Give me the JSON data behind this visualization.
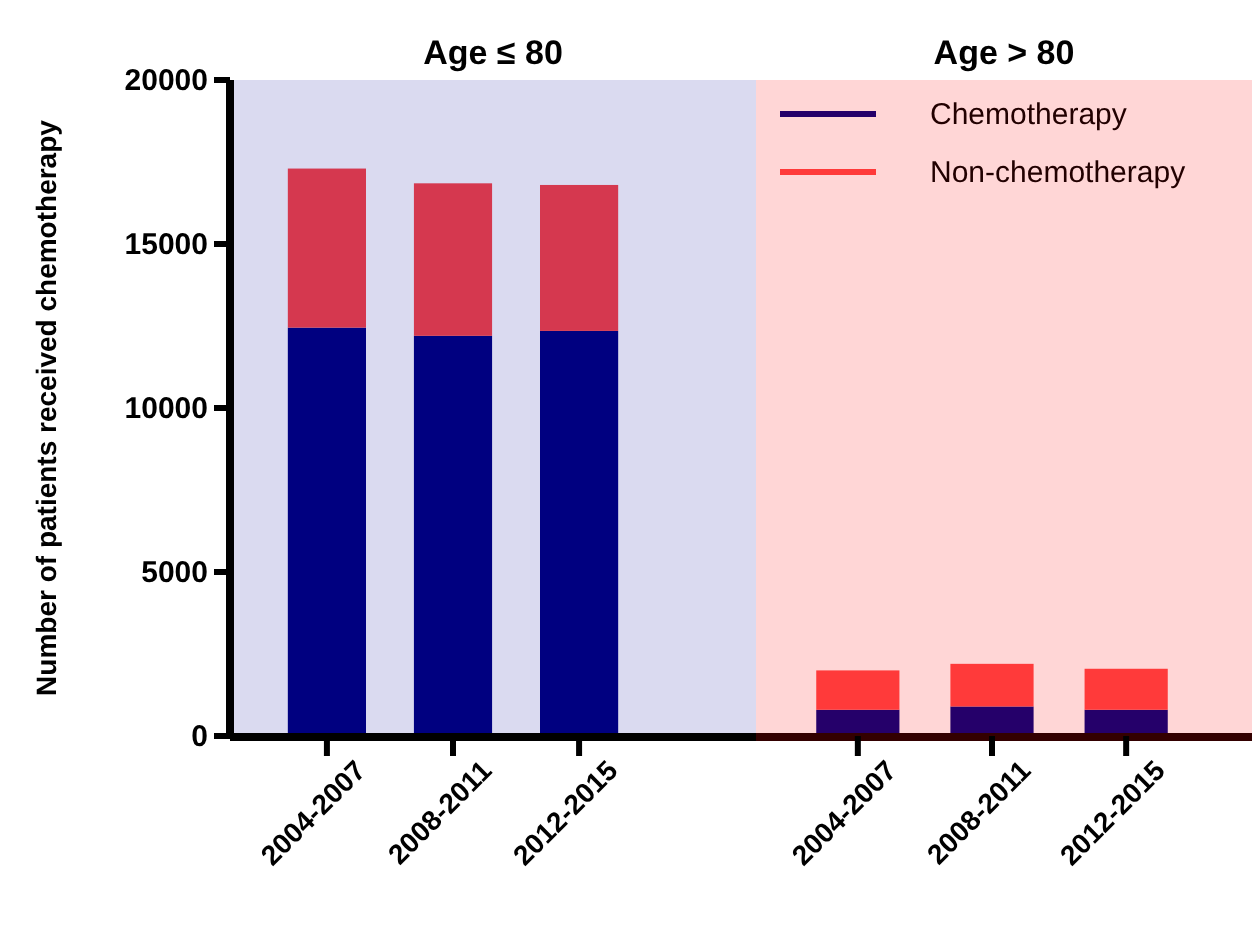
{
  "chart_data": [
    {
      "type": "bar",
      "title": "Age ≤ 80",
      "ylabel": "Number of patients received chemotherapy",
      "categories": [
        "2004-2007",
        "2008-2011",
        "2012-2015"
      ],
      "stacked": true,
      "series": [
        {
          "color": "#000080",
          "values": [
            12450,
            12200,
            12350
          ]
        },
        {
          "color": "#d5384f",
          "values": [
            4850,
            4650,
            4450
          ]
        }
      ],
      "ylim": [
        0,
        20000
      ],
      "yticks": [
        0,
        5000,
        10000,
        15000,
        20000
      ],
      "bands": [
        {
          "axis": "y",
          "from": 0,
          "to": 20000,
          "color": "#dadaf0"
        }
      ]
    },
    {
      "type": "bar",
      "title": "Age > 80",
      "categories": [
        "2004-2007",
        "2008-2011",
        "2012-2015"
      ],
      "stacked": true,
      "series": [
        {
          "name": "Chemotherapy",
          "color": "#25006a",
          "values": [
            800,
            900,
            800
          ]
        },
        {
          "name": "Non-chemotherapy",
          "color": "#ff3a3a",
          "values": [
            1200,
            1300,
            1250
          ]
        }
      ],
      "ylim": [
        0,
        20000
      ],
      "yticks": [
        0,
        5000,
        10000,
        15000,
        20000
      ],
      "tick_labels": "x",
      "legend": "top right",
      "bands": [
        {
          "axis": "y",
          "from": 0,
          "to": 20000,
          "color": "#ffd6d6"
        }
      ]
    }
  ]
}
